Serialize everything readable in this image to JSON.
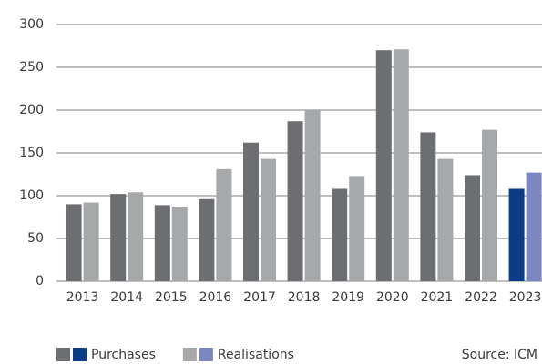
{
  "chart_data": {
    "type": "bar",
    "categories": [
      "2013",
      "2014",
      "2015",
      "2016",
      "2017",
      "2018",
      "2019",
      "2020",
      "2021",
      "2022",
      "2023"
    ],
    "series": [
      {
        "name": "Purchases",
        "colors": [
          "#6d6e71",
          "#6d6e71",
          "#6d6e71",
          "#6d6e71",
          "#6d6e71",
          "#6d6e71",
          "#6d6e71",
          "#6d6e71",
          "#6d6e71",
          "#6d6e71",
          "#0a3d85"
        ],
        "values": [
          90,
          102,
          89,
          96,
          162,
          187,
          108,
          270,
          174,
          124,
          108
        ]
      },
      {
        "name": "Realisations",
        "colors": [
          "#a7a8aa",
          "#a7a8aa",
          "#a7a8aa",
          "#a7a8aa",
          "#a7a8aa",
          "#a7a8aa",
          "#a7a8aa",
          "#a7a8aa",
          "#a7a8aa",
          "#a7a8aa",
          "#7b86c2"
        ],
        "values": [
          92,
          104,
          87,
          131,
          143,
          200,
          123,
          271,
          143,
          177,
          127
        ]
      }
    ],
    "ylim": [
      0,
      300
    ],
    "yticks": [
      0,
      50,
      100,
      150,
      200,
      250,
      300
    ],
    "grid": true,
    "source": "Source: ICM"
  }
}
